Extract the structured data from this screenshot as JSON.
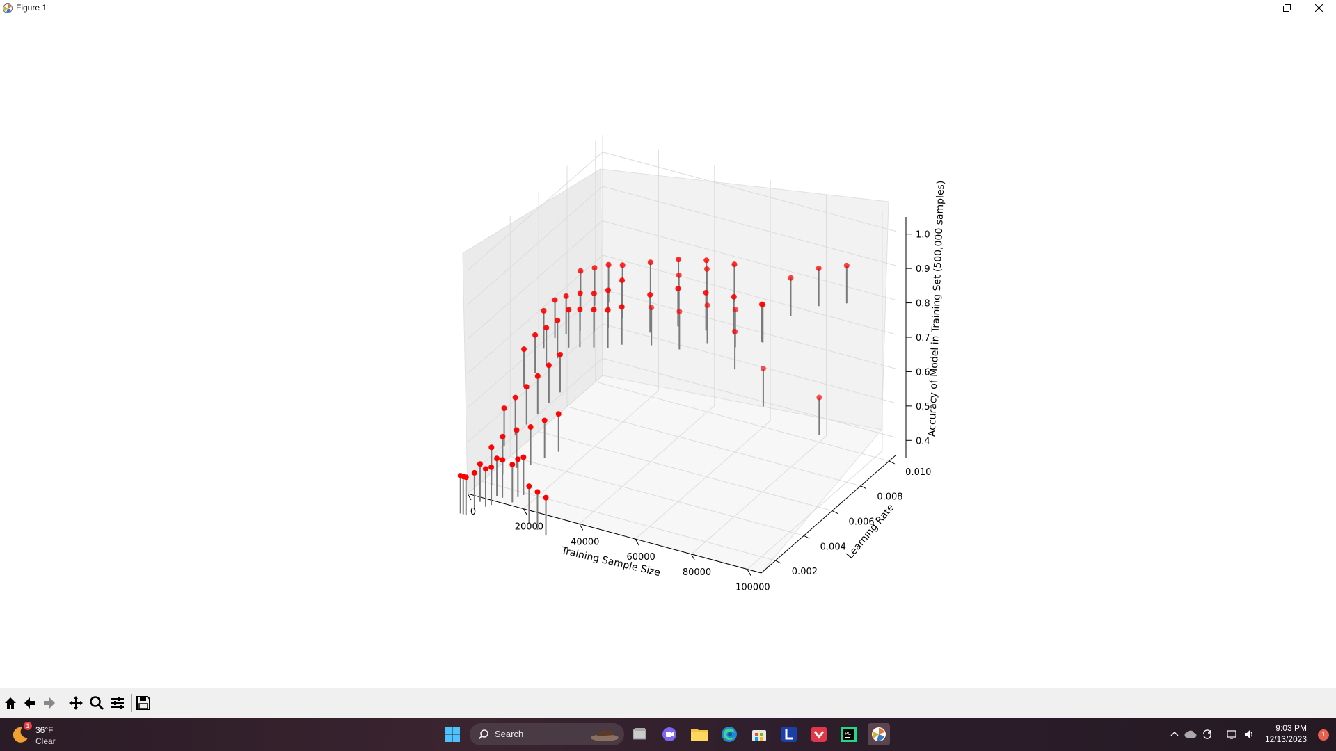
{
  "window": {
    "title": "Figure 1"
  },
  "chart_data": {
    "type": "scatter",
    "projection": "3d",
    "markers": "red points with grey vertical stems",
    "xlabel": "Training Sample Size",
    "ylabel": "Learning Rate",
    "zlabel": "Accuracy of Model in Training Set (500,000 samples)",
    "x_ticks": [
      "0",
      "20000",
      "40000",
      "60000",
      "80000",
      "100000"
    ],
    "y_ticks": [
      "0.002",
      "0.004",
      "0.006",
      "0.008",
      "0.010"
    ],
    "z_ticks": [
      "0.4",
      "0.5",
      "0.6",
      "0.7",
      "0.8",
      "0.9",
      "1.0"
    ],
    "xlim": [
      0,
      105000
    ],
    "ylim": [
      0.001,
      0.0105
    ],
    "zlim": [
      0.35,
      1.05
    ],
    "grid": true,
    "points": [
      {
        "x": 1000,
        "y": 0.0003,
        "z": 0.43
      },
      {
        "x": 2000,
        "y": 0.0003,
        "z": 0.43
      },
      {
        "x": 3000,
        "y": 0.0003,
        "z": 0.43
      },
      {
        "x": 5000,
        "y": 0.0005,
        "z": 0.44
      },
      {
        "x": 7000,
        "y": 0.0005,
        "z": 0.47
      },
      {
        "x": 9000,
        "y": 0.0005,
        "z": 0.46
      },
      {
        "x": 10000,
        "y": 0.0007,
        "z": 0.46
      },
      {
        "x": 12000,
        "y": 0.0007,
        "z": 0.49
      },
      {
        "x": 14000,
        "y": 0.0007,
        "z": 0.49
      },
      {
        "x": 16000,
        "y": 0.001,
        "z": 0.47
      },
      {
        "x": 18000,
        "y": 0.001,
        "z": 0.49
      },
      {
        "x": 20000,
        "y": 0.001,
        "z": 0.5
      },
      {
        "x": 22000,
        "y": 0.001,
        "z": 0.42
      },
      {
        "x": 25000,
        "y": 0.001,
        "z": 0.41
      },
      {
        "x": 28000,
        "y": 0.001,
        "z": 0.4
      },
      {
        "x": 6000,
        "y": 0.0015,
        "z": 0.48
      },
      {
        "x": 10000,
        "y": 0.0015,
        "z": 0.52
      },
      {
        "x": 15000,
        "y": 0.0015,
        "z": 0.55
      },
      {
        "x": 20000,
        "y": 0.0015,
        "z": 0.57
      },
      {
        "x": 25000,
        "y": 0.0015,
        "z": 0.6
      },
      {
        "x": 30000,
        "y": 0.0015,
        "z": 0.63
      },
      {
        "x": 8000,
        "y": 0.002,
        "z": 0.58
      },
      {
        "x": 12000,
        "y": 0.002,
        "z": 0.62
      },
      {
        "x": 16000,
        "y": 0.002,
        "z": 0.66
      },
      {
        "x": 20000,
        "y": 0.002,
        "z": 0.7
      },
      {
        "x": 24000,
        "y": 0.002,
        "z": 0.74
      },
      {
        "x": 28000,
        "y": 0.002,
        "z": 0.78
      },
      {
        "x": 10000,
        "y": 0.003,
        "z": 0.72
      },
      {
        "x": 14000,
        "y": 0.003,
        "z": 0.77
      },
      {
        "x": 18000,
        "y": 0.003,
        "z": 0.8
      },
      {
        "x": 22000,
        "y": 0.003,
        "z": 0.83
      },
      {
        "x": 26000,
        "y": 0.003,
        "z": 0.87
      },
      {
        "x": 30000,
        "y": 0.003,
        "z": 0.88
      },
      {
        "x": 35000,
        "y": 0.003,
        "z": 0.89
      },
      {
        "x": 40000,
        "y": 0.003,
        "z": 0.9
      },
      {
        "x": 45000,
        "y": 0.003,
        "z": 0.92
      },
      {
        "x": 12000,
        "y": 0.004,
        "z": 0.8
      },
      {
        "x": 16000,
        "y": 0.004,
        "z": 0.84
      },
      {
        "x": 20000,
        "y": 0.004,
        "z": 0.86
      },
      {
        "x": 25000,
        "y": 0.004,
        "z": 0.88
      },
      {
        "x": 30000,
        "y": 0.004,
        "z": 0.89
      },
      {
        "x": 35000,
        "y": 0.004,
        "z": 0.91
      },
      {
        "x": 40000,
        "y": 0.004,
        "z": 0.95
      },
      {
        "x": 50000,
        "y": 0.004,
        "z": 0.93
      },
      {
        "x": 60000,
        "y": 0.004,
        "z": 0.97
      },
      {
        "x": 70000,
        "y": 0.004,
        "z": 0.98
      },
      {
        "x": 80000,
        "y": 0.004,
        "z": 0.99
      },
      {
        "x": 90000,
        "y": 0.004,
        "z": 0.99
      },
      {
        "x": 15000,
        "y": 0.006,
        "z": 0.85
      },
      {
        "x": 20000,
        "y": 0.006,
        "z": 0.87
      },
      {
        "x": 25000,
        "y": 0.006,
        "z": 0.89
      },
      {
        "x": 30000,
        "y": 0.006,
        "z": 0.9
      },
      {
        "x": 40000,
        "y": 0.006,
        "z": 0.93
      },
      {
        "x": 50000,
        "y": 0.006,
        "z": 0.96
      },
      {
        "x": 60000,
        "y": 0.006,
        "z": 0.98
      },
      {
        "x": 70000,
        "y": 0.006,
        "z": 0.99
      },
      {
        "x": 40000,
        "y": 0.008,
        "z": 0.82
      },
      {
        "x": 50000,
        "y": 0.008,
        "z": 0.86
      },
      {
        "x": 60000,
        "y": 0.008,
        "z": 0.7
      },
      {
        "x": 70000,
        "y": 0.008,
        "z": 0.8
      },
      {
        "x": 80000,
        "y": 0.008,
        "z": 0.9
      },
      {
        "x": 90000,
        "y": 0.008,
        "z": 0.95
      },
      {
        "x": 100000,
        "y": 0.008,
        "z": 0.98
      },
      {
        "x": 20000,
        "y": 0.01,
        "z": 0.61
      },
      {
        "x": 30000,
        "y": 0.01,
        "z": 0.62
      },
      {
        "x": 40000,
        "y": 0.01,
        "z": 0.66
      },
      {
        "x": 50000,
        "y": 0.01,
        "z": 0.67
      },
      {
        "x": 60000,
        "y": 0.01,
        "z": 0.52
      },
      {
        "x": 80000,
        "y": 0.01,
        "z": 0.48
      }
    ]
  },
  "toolbar": {
    "buttons": [
      "home-icon",
      "back-icon",
      "forward-icon",
      "pan-icon",
      "zoom-icon",
      "configure-subplots-icon",
      "save-icon"
    ]
  },
  "taskbar": {
    "weather_temp": "36°F",
    "weather_condition": "Clear",
    "weather_badge": "1",
    "search_label": "Search",
    "time": "9:03 PM",
    "date": "12/13/2023",
    "notification_count": "1"
  }
}
